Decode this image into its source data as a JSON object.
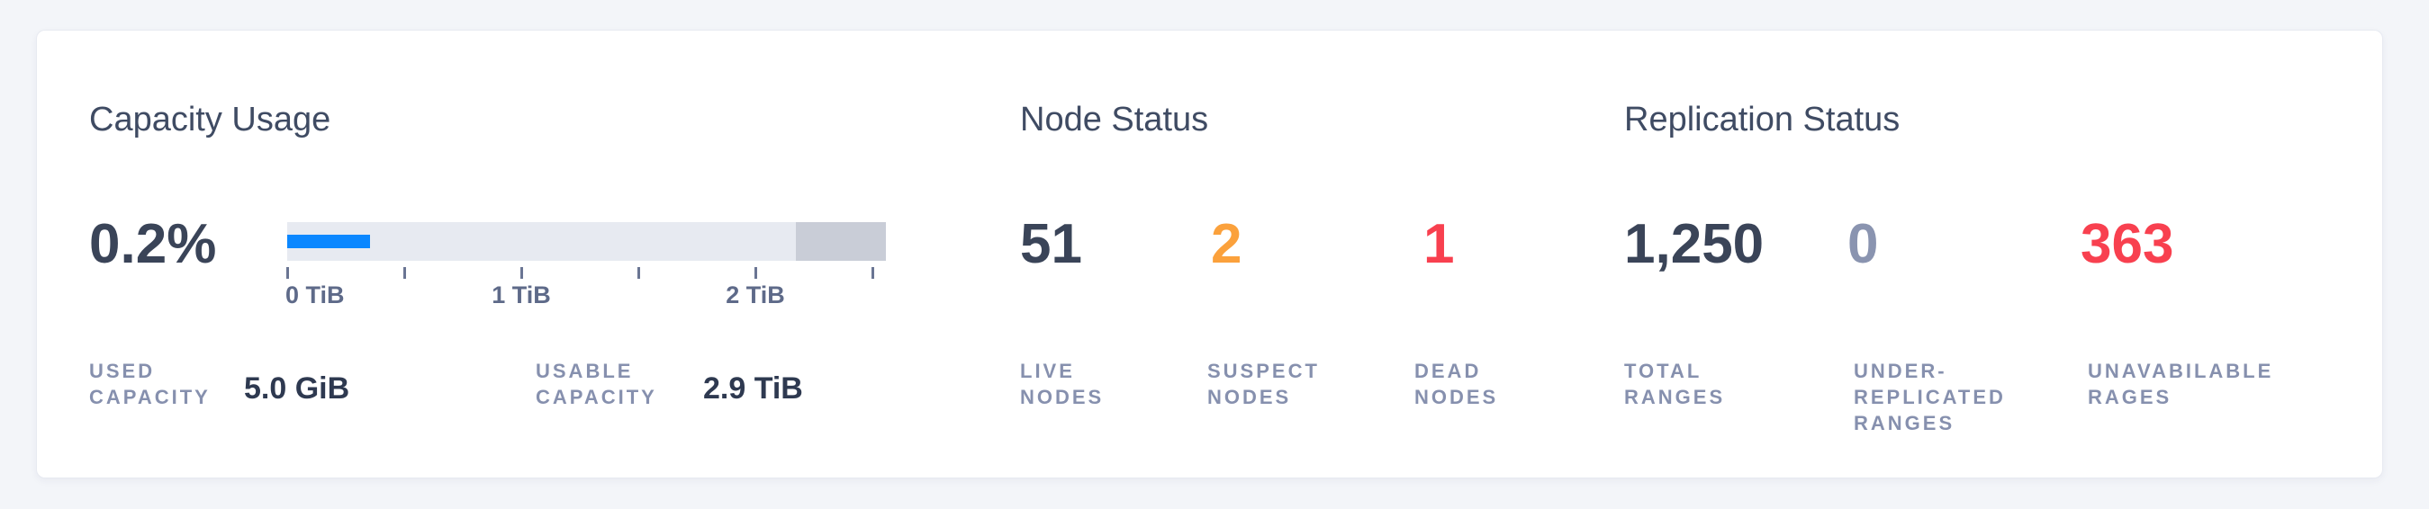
{
  "colors": {
    "page_bg": "#f3f5f9",
    "card_bg": "#ffffff",
    "card_border": "#e7eaf1",
    "title": "#3f4b63",
    "dark": "#3a4458",
    "orange": "#fba13c",
    "red": "#f8404f",
    "muted": "#8a94b0",
    "stat_value": "#2e3950",
    "small_label": "#8690ae",
    "bar_bg": "#e7eaf1",
    "bar_used": "#0b87ff",
    "bar_reserved": "#c9cdd7",
    "tick": "#6a7593",
    "tick_label": "#5e6a89"
  },
  "capacity": {
    "title": "Capacity Usage",
    "percent_used": "0.2%",
    "bar": {
      "used_width": "13.8%",
      "reserved_width": "15%",
      "ticks": [
        {
          "pos": 0,
          "label": "0 TiB",
          "align": "left"
        },
        {
          "pos": 19.5
        },
        {
          "pos": 39.1,
          "label": "1 TiB",
          "align": "center"
        },
        {
          "pos": 58.6
        },
        {
          "pos": 78.2,
          "label": "2 TiB",
          "align": "center"
        },
        {
          "pos": 97.7
        }
      ]
    },
    "stats": [
      {
        "label": "USED\nCAPACITY",
        "value": "5.0 GiB"
      },
      {
        "label": "USABLE\nCAPACITY",
        "value": "2.9 TiB"
      }
    ]
  },
  "nodes": {
    "title": "Node Status",
    "metrics": [
      {
        "value": "51",
        "label": "LIVE\nNODES",
        "color": "dark"
      },
      {
        "value": "2",
        "label": "SUSPECT\nNODES",
        "color": "orange"
      },
      {
        "value": "1",
        "label": "DEAD\nNODES",
        "color": "red"
      }
    ]
  },
  "replication": {
    "title": "Replication Status",
    "metrics": [
      {
        "value": "1,250",
        "label": "TOTAL\nRANGES",
        "color": "dark"
      },
      {
        "value": "0",
        "label": "UNDER-\nREPLICATED\nRANGES",
        "color": "muted"
      },
      {
        "value": "363",
        "label": "UNAVABILABLE\nRAGES",
        "color": "red"
      }
    ]
  }
}
